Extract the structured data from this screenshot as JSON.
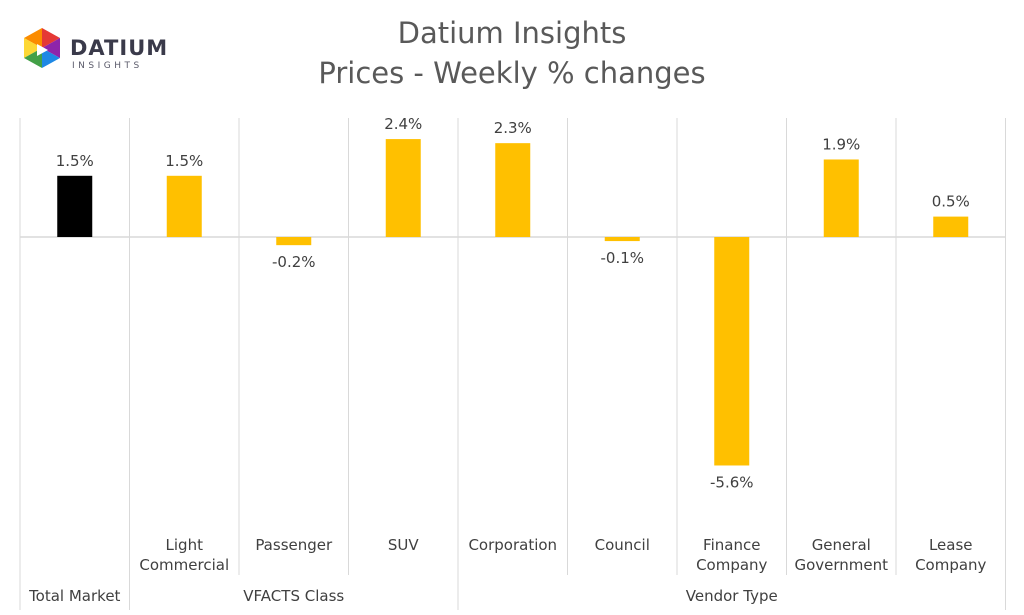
{
  "logo": {
    "word": "DATIUM",
    "subword": "INSIGHTS",
    "colors": [
      "#e53935",
      "#fb8c00",
      "#fdd835",
      "#43a047",
      "#1e88e5",
      "#8e24aa"
    ]
  },
  "chart_data": {
    "type": "bar",
    "title": "Datium Insights",
    "subtitle": "Prices - Weekly % changes",
    "categories": [
      [
        "Total Market"
      ],
      [
        "Light",
        "Commercial"
      ],
      [
        "Passenger"
      ],
      [
        "SUV"
      ],
      [
        "Corporation"
      ],
      [
        "Council"
      ],
      [
        "Finance",
        "Company"
      ],
      [
        "General",
        "Government"
      ],
      [
        "Lease",
        "Company"
      ]
    ],
    "groups": [
      {
        "label": "",
        "start": 0,
        "end": 0
      },
      {
        "label": "VFACTS Class",
        "start": 1,
        "end": 3
      },
      {
        "label": "Vendor Type",
        "start": 4,
        "end": 8
      }
    ],
    "values": [
      1.5,
      1.5,
      -0.2,
      2.4,
      2.3,
      -0.1,
      -5.6,
      1.9,
      0.5
    ],
    "data_labels": [
      "1.5%",
      "1.5%",
      "-0.2%",
      "2.4%",
      "2.3%",
      "-0.1%",
      "-5.6%",
      "1.9%",
      "0.5%"
    ],
    "colors": [
      "#000000",
      "#ffc000",
      "#ffc000",
      "#ffc000",
      "#ffc000",
      "#ffc000",
      "#ffc000",
      "#ffc000",
      "#ffc000"
    ],
    "grid_color": "#d9d9d9",
    "ylim": [
      -6.8,
      3.0
    ],
    "legend": "none"
  }
}
